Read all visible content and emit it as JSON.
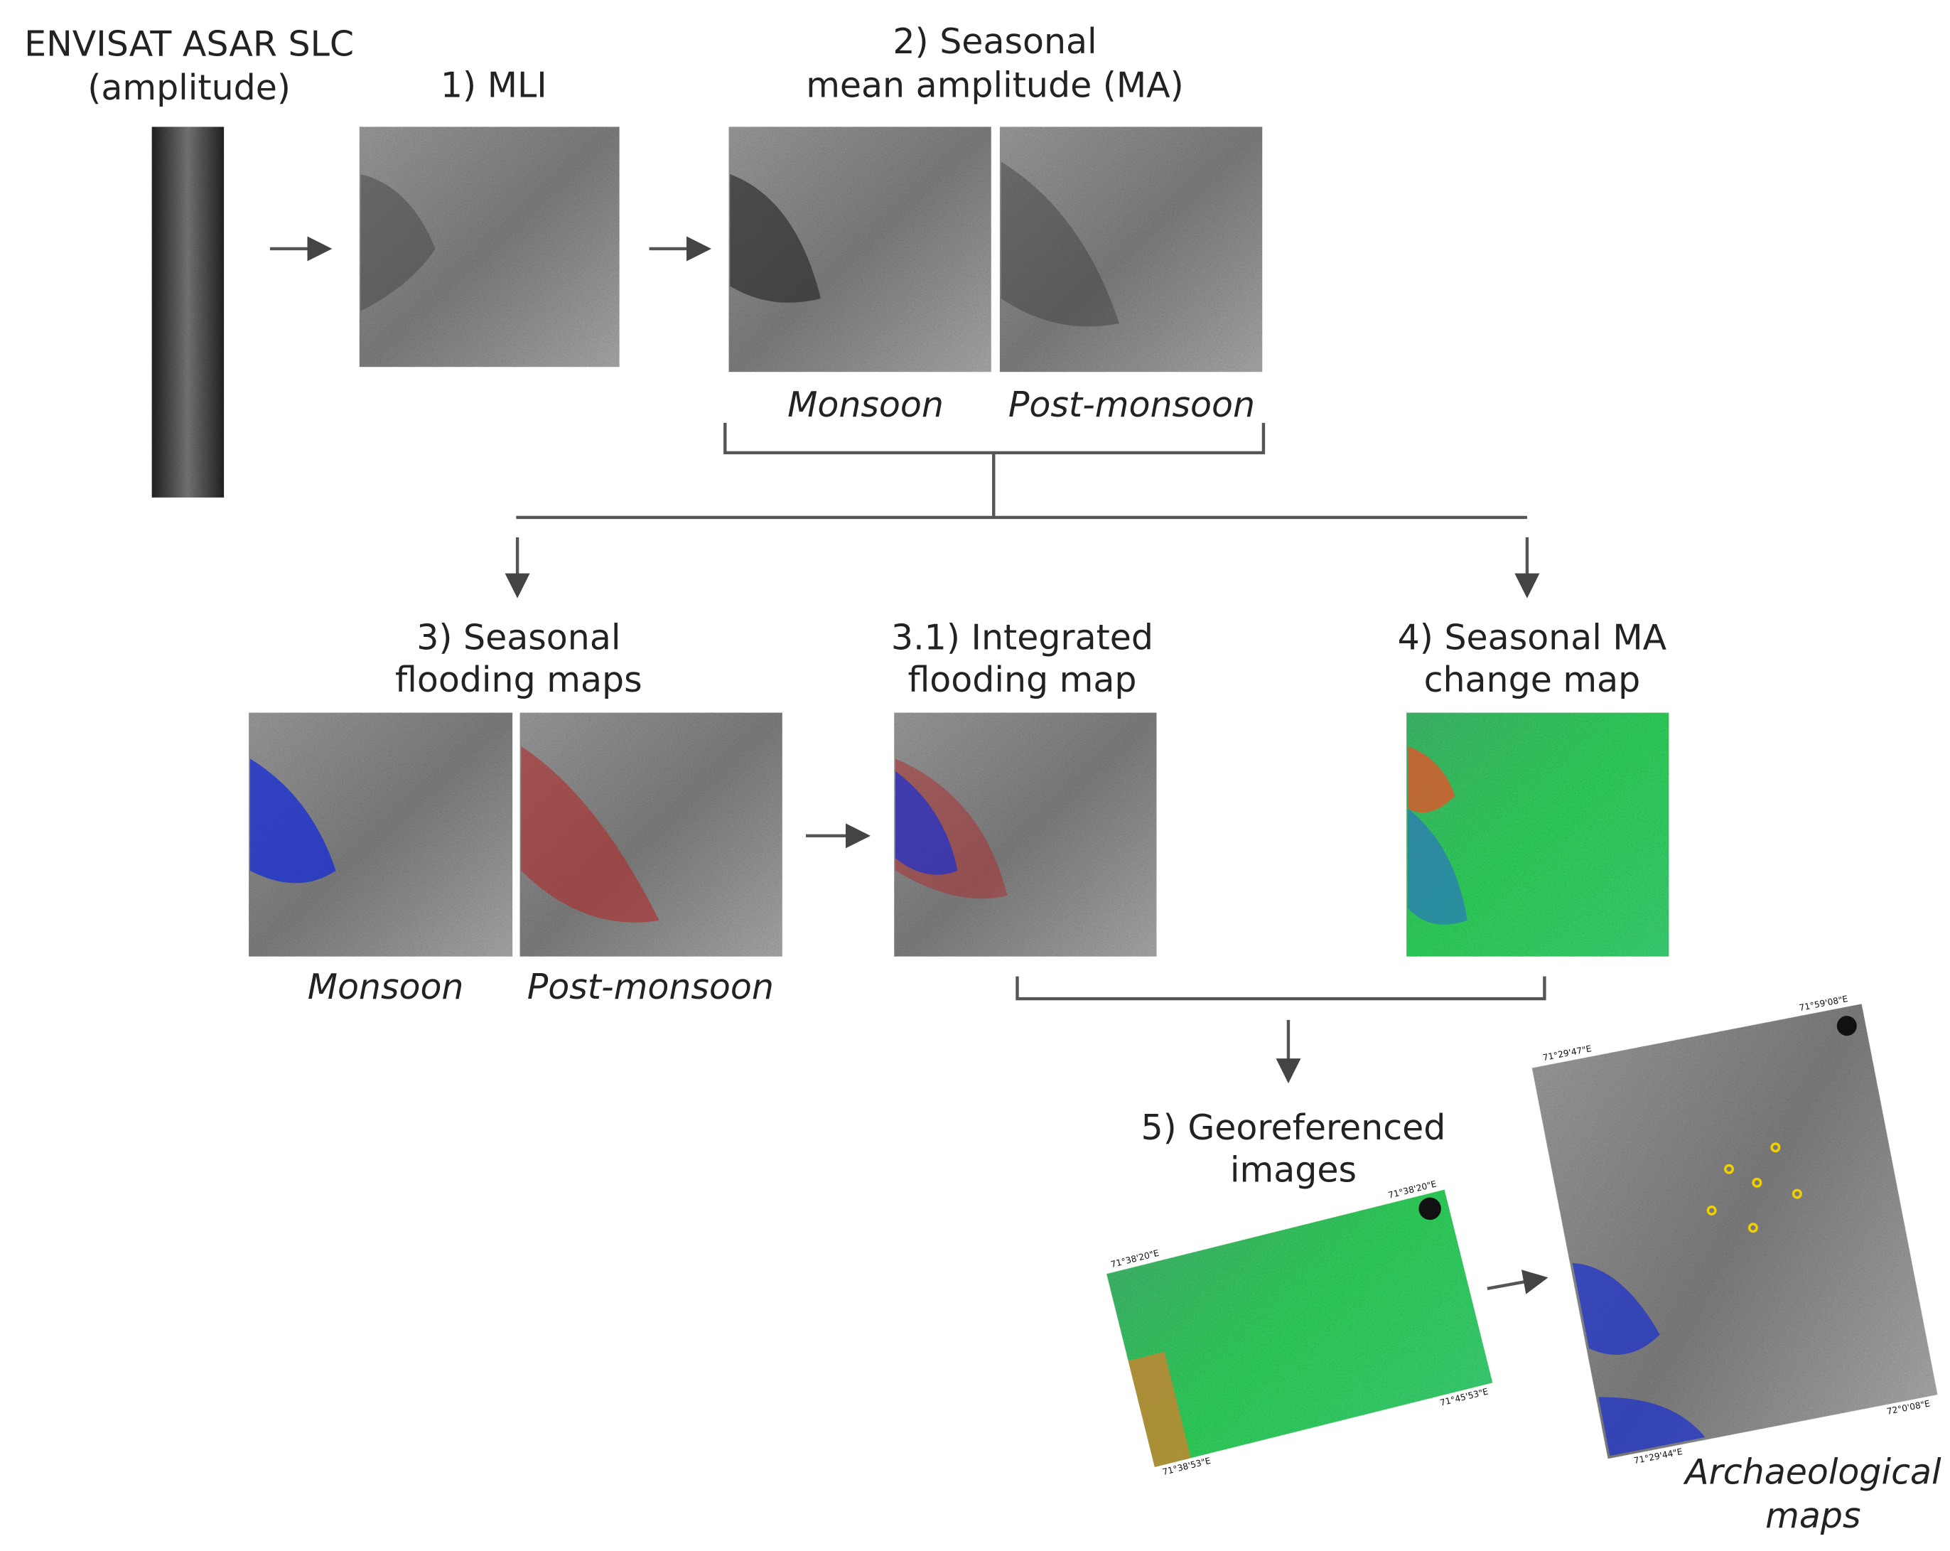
{
  "source": {
    "title": "ENVISAT ASAR SLC",
    "subtitle": "(amplitude)"
  },
  "mli": {
    "title": "1) MLI"
  },
  "seasonal_ma": {
    "title": "2) Seasonal",
    "subtitle": "mean amplitude (MA)",
    "captions": [
      "Monsoon",
      "Post-monsoon"
    ]
  },
  "flooding_maps": {
    "title": "3) Seasonal",
    "subtitle": "flooding maps",
    "captions": [
      "Monsoon",
      "Post-monsoon"
    ]
  },
  "integrated": {
    "title": "3.1) Integrated",
    "subtitle": "flooding map"
  },
  "change_map": {
    "title": "4) Seasonal MA",
    "subtitle": "change map"
  },
  "georeferenced": {
    "title": "5) Georeferenced",
    "subtitle": "images",
    "coords": [
      "71°38'20\"E",
      "71°38'20\"E",
      "71°45'53\"E",
      "71°38'53\"E"
    ]
  },
  "archaeological": {
    "title": "Archaeological",
    "subtitle": "maps",
    "coords": [
      "71°29'47\"E",
      "71°59'08\"E",
      "72°0'08\"E",
      "71°29'44\"E"
    ]
  }
}
